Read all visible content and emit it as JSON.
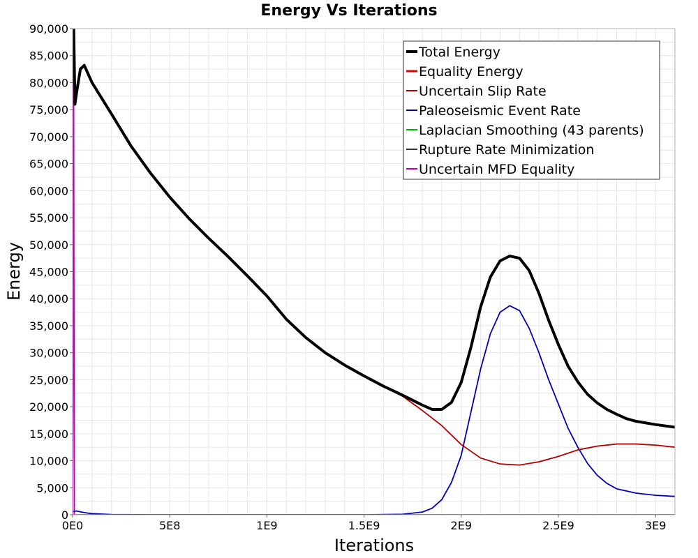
{
  "chart_data": {
    "type": "line",
    "title": "Energy Vs Iterations",
    "xlabel": "Iterations",
    "ylabel": "Energy",
    "xlim": [
      0,
      3100000000
    ],
    "ylim": [
      0,
      90000
    ],
    "grid": true,
    "legend_position": "top-right",
    "x_ticks": [
      {
        "value": 0,
        "label": "0E0"
      },
      {
        "value": 500000000,
        "label": "5E8"
      },
      {
        "value": 1000000000,
        "label": "1E9"
      },
      {
        "value": 1500000000,
        "label": "1.5E9"
      },
      {
        "value": 2000000000,
        "label": "2E9"
      },
      {
        "value": 2500000000,
        "label": "2.5E9"
      },
      {
        "value": 3000000000,
        "label": "3E9"
      }
    ],
    "y_ticks": [
      {
        "value": 0,
        "label": "0"
      },
      {
        "value": 5000,
        "label": "5,000"
      },
      {
        "value": 10000,
        "label": "10,000"
      },
      {
        "value": 15000,
        "label": "15,000"
      },
      {
        "value": 20000,
        "label": "20,000"
      },
      {
        "value": 25000,
        "label": "25,000"
      },
      {
        "value": 30000,
        "label": "30,000"
      },
      {
        "value": 35000,
        "label": "35,000"
      },
      {
        "value": 40000,
        "label": "40,000"
      },
      {
        "value": 45000,
        "label": "45,000"
      },
      {
        "value": 50000,
        "label": "50,000"
      },
      {
        "value": 55000,
        "label": "55,000"
      },
      {
        "value": 60000,
        "label": "60,000"
      },
      {
        "value": 65000,
        "label": "65,000"
      },
      {
        "value": 70000,
        "label": "70,000"
      },
      {
        "value": 75000,
        "label": "75,000"
      },
      {
        "value": 80000,
        "label": "80,000"
      },
      {
        "value": 85000,
        "label": "85,000"
      },
      {
        "value": 90000,
        "label": "90,000"
      }
    ],
    "series": [
      {
        "name": "Total Energy",
        "color": "#000000",
        "legend_stroke": 4,
        "stroke": 4,
        "points": [
          [
            0,
            80500
          ],
          [
            6000000,
            90000
          ],
          [
            12000000,
            76000
          ],
          [
            20000000,
            78000
          ],
          [
            40000000,
            82500
          ],
          [
            60000000,
            83200
          ],
          [
            100000000,
            80000
          ],
          [
            200000000,
            74200
          ],
          [
            300000000,
            68300
          ],
          [
            400000000,
            63300
          ],
          [
            500000000,
            58800
          ],
          [
            600000000,
            54800
          ],
          [
            700000000,
            51200
          ],
          [
            800000000,
            47800
          ],
          [
            900000000,
            44200
          ],
          [
            1000000000,
            40500
          ],
          [
            1100000000,
            36200
          ],
          [
            1200000000,
            32800
          ],
          [
            1300000000,
            30000
          ],
          [
            1400000000,
            27700
          ],
          [
            1500000000,
            25700
          ],
          [
            1600000000,
            23800
          ],
          [
            1700000000,
            22100
          ],
          [
            1800000000,
            20300
          ],
          [
            1850000000,
            19500
          ],
          [
            1900000000,
            19500
          ],
          [
            1950000000,
            20800
          ],
          [
            2000000000,
            24500
          ],
          [
            2050000000,
            31000
          ],
          [
            2100000000,
            38500
          ],
          [
            2150000000,
            44000
          ],
          [
            2200000000,
            47000
          ],
          [
            2250000000,
            47900
          ],
          [
            2300000000,
            47500
          ],
          [
            2350000000,
            45200
          ],
          [
            2400000000,
            41000
          ],
          [
            2450000000,
            36000
          ],
          [
            2500000000,
            31500
          ],
          [
            2550000000,
            27500
          ],
          [
            2600000000,
            24600
          ],
          [
            2650000000,
            22300
          ],
          [
            2700000000,
            20700
          ],
          [
            2750000000,
            19500
          ],
          [
            2800000000,
            18600
          ],
          [
            2850000000,
            17800
          ],
          [
            2900000000,
            17300
          ],
          [
            3000000000,
            16700
          ],
          [
            3100000000,
            16200
          ]
        ]
      },
      {
        "name": "Equality Energy",
        "color": "#e00000",
        "legend_stroke": 3,
        "stroke": 2.5,
        "points": [
          [
            0,
            80500
          ],
          [
            6000000,
            90000
          ],
          [
            12000000,
            76000
          ],
          [
            20000000,
            78000
          ],
          [
            40000000,
            82500
          ],
          [
            60000000,
            83200
          ],
          [
            100000000,
            80000
          ],
          [
            200000000,
            74200
          ],
          [
            300000000,
            68300
          ],
          [
            400000000,
            63300
          ],
          [
            500000000,
            58800
          ],
          [
            600000000,
            54800
          ],
          [
            700000000,
            51200
          ],
          [
            800000000,
            47800
          ],
          [
            900000000,
            44200
          ],
          [
            1000000000,
            40500
          ],
          [
            1100000000,
            36200
          ],
          [
            1200000000,
            32800
          ],
          [
            1300000000,
            30000
          ],
          [
            1400000000,
            27700
          ],
          [
            1500000000,
            25700
          ],
          [
            1600000000,
            23800
          ],
          [
            1700000000,
            22100
          ],
          [
            1800000000,
            20300
          ],
          [
            1850000000,
            19500
          ],
          [
            1900000000,
            19500
          ],
          [
            1950000000,
            20800
          ],
          [
            2000000000,
            24500
          ],
          [
            2050000000,
            31000
          ],
          [
            2100000000,
            38500
          ],
          [
            2150000000,
            44000
          ],
          [
            2200000000,
            47000
          ],
          [
            2250000000,
            47900
          ],
          [
            2300000000,
            47500
          ],
          [
            2350000000,
            45200
          ],
          [
            2400000000,
            41000
          ],
          [
            2450000000,
            36000
          ],
          [
            2500000000,
            31500
          ],
          [
            2550000000,
            27500
          ],
          [
            2600000000,
            24600
          ],
          [
            2650000000,
            22300
          ],
          [
            2700000000,
            20700
          ],
          [
            2750000000,
            19500
          ],
          [
            2800000000,
            18600
          ],
          [
            2850000000,
            17800
          ],
          [
            2900000000,
            17300
          ],
          [
            3000000000,
            16700
          ],
          [
            3100000000,
            16200
          ]
        ]
      },
      {
        "name": "Uncertain Slip Rate",
        "color": "#b00000",
        "legend_stroke": 2,
        "stroke": 1.8,
        "points": [
          [
            0,
            80500
          ],
          [
            6000000,
            90000
          ],
          [
            12000000,
            76000
          ],
          [
            20000000,
            78000
          ],
          [
            40000000,
            82500
          ],
          [
            60000000,
            83200
          ],
          [
            100000000,
            80000
          ],
          [
            200000000,
            74200
          ],
          [
            300000000,
            68300
          ],
          [
            400000000,
            63300
          ],
          [
            500000000,
            58800
          ],
          [
            600000000,
            54800
          ],
          [
            700000000,
            51200
          ],
          [
            800000000,
            47800
          ],
          [
            900000000,
            44200
          ],
          [
            1000000000,
            40500
          ],
          [
            1100000000,
            36200
          ],
          [
            1200000000,
            32800
          ],
          [
            1300000000,
            30000
          ],
          [
            1400000000,
            27700
          ],
          [
            1500000000,
            25700
          ],
          [
            1600000000,
            23800
          ],
          [
            1700000000,
            21900
          ],
          [
            1800000000,
            19300
          ],
          [
            1900000000,
            16500
          ],
          [
            2000000000,
            13000
          ],
          [
            2100000000,
            10500
          ],
          [
            2200000000,
            9400
          ],
          [
            2300000000,
            9200
          ],
          [
            2400000000,
            9800
          ],
          [
            2500000000,
            10800
          ],
          [
            2600000000,
            12000
          ],
          [
            2700000000,
            12700
          ],
          [
            2800000000,
            13100
          ],
          [
            2900000000,
            13100
          ],
          [
            3000000000,
            12900
          ],
          [
            3100000000,
            12500
          ]
        ]
      },
      {
        "name": "Paleoseismic Event Rate",
        "color": "#0000b4",
        "legend_stroke": 2,
        "stroke": 1.8,
        "points": [
          [
            0,
            600
          ],
          [
            20000000,
            700
          ],
          [
            60000000,
            400
          ],
          [
            100000000,
            200
          ],
          [
            200000000,
            50
          ],
          [
            400000000,
            0
          ],
          [
            1000000000,
            0
          ],
          [
            1500000000,
            0
          ],
          [
            1700000000,
            100
          ],
          [
            1800000000,
            500
          ],
          [
            1850000000,
            1200
          ],
          [
            1900000000,
            2800
          ],
          [
            1950000000,
            6000
          ],
          [
            2000000000,
            11000
          ],
          [
            2050000000,
            19000
          ],
          [
            2100000000,
            27000
          ],
          [
            2150000000,
            33500
          ],
          [
            2200000000,
            37500
          ],
          [
            2250000000,
            38700
          ],
          [
            2300000000,
            37800
          ],
          [
            2350000000,
            34500
          ],
          [
            2400000000,
            30000
          ],
          [
            2450000000,
            25000
          ],
          [
            2500000000,
            20500
          ],
          [
            2550000000,
            16000
          ],
          [
            2600000000,
            12500
          ],
          [
            2650000000,
            9500
          ],
          [
            2700000000,
            7300
          ],
          [
            2750000000,
            5800
          ],
          [
            2800000000,
            4800
          ],
          [
            2900000000,
            4000
          ],
          [
            3000000000,
            3600
          ],
          [
            3100000000,
            3400
          ]
        ]
      },
      {
        "name": "Laplacian Smoothing (43 parents)",
        "color": "#00b400",
        "legend_stroke": 2,
        "stroke": 1.2,
        "points": [
          [
            0,
            0
          ],
          [
            3100000000,
            0
          ]
        ]
      },
      {
        "name": "Rupture Rate Minimization",
        "color": "#333333",
        "legend_stroke": 2,
        "stroke": 1.2,
        "points": [
          [
            0,
            0
          ],
          [
            3100000000,
            0
          ]
        ]
      },
      {
        "name": "Uncertain MFD Equality",
        "color": "#b400b4",
        "legend_stroke": 2,
        "stroke": 1.8,
        "points": [
          [
            0,
            0
          ],
          [
            5000000,
            90000
          ],
          [
            9000000,
            0
          ],
          [
            3100000000,
            0
          ]
        ]
      }
    ]
  }
}
